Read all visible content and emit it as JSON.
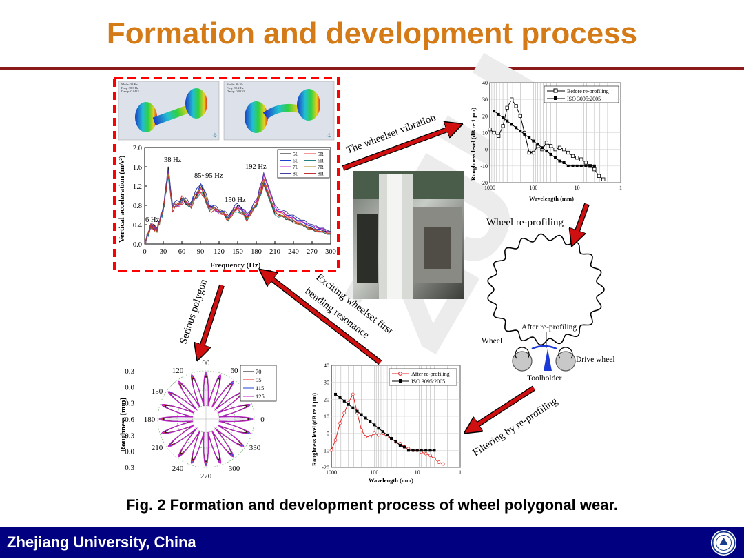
{
  "slide": {
    "title": "Formation and development process",
    "caption": "Fig. 2 Formation and development process of wheel polygonal wear.",
    "footer": "Zhejiang University, China"
  },
  "watermark": "ZJU",
  "colors": {
    "title": "#d47a16",
    "rule": "#8b1a1a",
    "footer_bg": "#000080",
    "arrow": "#d01010",
    "dashed_box": "#ff0000"
  },
  "arrow_labels": {
    "wheelset_vibration": "The wheelset vibration",
    "wheel_reprofiling": "Wheel re-profiling",
    "filtering": "Filtering by re-profiling",
    "exciting_line1": "Exciting wheelset first",
    "exciting_line2": "bending resonance",
    "serious_polygon": "Serious polygon"
  },
  "fe_panels": [
    {
      "header": [
        "Mode: 38 Hz",
        "Freq: 38.3 Hz",
        "Damp: 0.0413"
      ]
    },
    {
      "header": [
        "Mode: 90 Hz",
        "Freq: 90.2 Hz",
        "Damp: 0.0320"
      ]
    }
  ],
  "schematic": {
    "after_label": "After re-profiling",
    "wheel_label": "Wheel",
    "drive_label": "Drive wheel",
    "tool_label": "Toolholder"
  },
  "chart_data": [
    {
      "type": "line",
      "ylabel": "Vertical acceleration (m/s²)",
      "xlabel": "Frequency (Hz)",
      "xlim": [
        0,
        300
      ],
      "ylim": [
        0,
        2.0
      ],
      "xticks": [
        "0",
        "30",
        "60",
        "90",
        "120",
        "150",
        "180",
        "210",
        "240",
        "270",
        "300"
      ],
      "yticks": [
        "0.0",
        "0.4",
        "0.8",
        "1.2",
        "1.6",
        "2.0"
      ],
      "legend": [
        "5L",
        "5R",
        "6L",
        "6R",
        "7L",
        "7R",
        "8L",
        "8R"
      ],
      "annotations": [
        "38 Hz",
        "85~95 Hz",
        "192 Hz",
        "150 Hz",
        "6 Hz"
      ],
      "series": [
        {
          "name": "5L",
          "color": "#000000",
          "x": [
            0,
            10,
            20,
            30,
            38,
            45,
            60,
            75,
            90,
            105,
            120,
            135,
            150,
            165,
            180,
            192,
            210,
            240,
            270,
            300
          ],
          "y": [
            0.02,
            0.38,
            0.3,
            0.75,
            1.55,
            0.75,
            0.9,
            0.82,
            1.2,
            0.75,
            0.7,
            0.55,
            0.82,
            0.55,
            0.82,
            1.3,
            0.65,
            0.45,
            0.32,
            0.25
          ]
        },
        {
          "name": "5R",
          "color": "#e03030",
          "x": [
            0,
            10,
            20,
            30,
            38,
            45,
            60,
            75,
            90,
            105,
            120,
            135,
            150,
            165,
            180,
            192,
            210,
            240,
            270,
            300
          ],
          "y": [
            0.02,
            0.4,
            0.28,
            0.72,
            1.5,
            0.7,
            0.95,
            0.8,
            1.15,
            0.7,
            0.72,
            0.5,
            0.78,
            0.5,
            0.85,
            1.35,
            0.7,
            0.5,
            0.3,
            0.2
          ]
        },
        {
          "name": "6L",
          "color": "#2040d0",
          "x": [
            0,
            10,
            20,
            30,
            38,
            45,
            60,
            75,
            90,
            105,
            120,
            135,
            150,
            165,
            180,
            192,
            210,
            240,
            270,
            300
          ],
          "y": [
            0.02,
            0.36,
            0.32,
            0.7,
            1.45,
            0.78,
            0.88,
            0.85,
            1.25,
            0.8,
            0.68,
            0.58,
            0.75,
            0.58,
            0.8,
            1.25,
            0.72,
            0.55,
            0.35,
            0.22
          ]
        },
        {
          "name": "6R",
          "color": "#208080",
          "x": [
            0,
            10,
            20,
            30,
            38,
            45,
            60,
            75,
            90,
            105,
            120,
            135,
            150,
            165,
            180,
            192,
            210,
            240,
            270,
            300
          ],
          "y": [
            0.02,
            0.35,
            0.3,
            0.68,
            1.4,
            0.72,
            0.92,
            0.78,
            1.1,
            0.72,
            0.75,
            0.52,
            0.7,
            0.52,
            0.78,
            1.2,
            0.6,
            0.48,
            0.28,
            0.2
          ]
        },
        {
          "name": "7L",
          "color": "#c020c0",
          "x": [
            0,
            10,
            20,
            30,
            38,
            45,
            60,
            75,
            90,
            105,
            120,
            135,
            150,
            165,
            180,
            192,
            210,
            240,
            270,
            300
          ],
          "y": [
            0.02,
            0.38,
            0.33,
            0.74,
            1.52,
            0.74,
            0.86,
            0.83,
            1.18,
            0.78,
            0.66,
            0.56,
            0.8,
            0.6,
            0.88,
            1.4,
            0.75,
            0.52,
            0.38,
            0.24
          ]
        },
        {
          "name": "7R",
          "color": "#a08020",
          "x": [
            0,
            10,
            20,
            30,
            38,
            45,
            60,
            75,
            90,
            105,
            120,
            135,
            150,
            165,
            180,
            192,
            210,
            240,
            270,
            300
          ],
          "y": [
            0.02,
            0.37,
            0.29,
            0.73,
            1.48,
            0.76,
            0.9,
            0.81,
            1.22,
            0.74,
            0.7,
            0.54,
            0.76,
            0.54,
            0.82,
            1.28,
            0.66,
            0.46,
            0.3,
            0.22
          ]
        },
        {
          "name": "8L",
          "color": "#4040a0",
          "x": [
            0,
            10,
            20,
            30,
            38,
            45,
            60,
            75,
            90,
            105,
            120,
            135,
            150,
            165,
            180,
            192,
            210,
            240,
            270,
            300
          ],
          "y": [
            0.02,
            0.39,
            0.31,
            0.76,
            1.58,
            0.8,
            0.94,
            0.86,
            1.28,
            0.82,
            0.72,
            0.6,
            0.84,
            0.62,
            0.9,
            1.45,
            0.78,
            0.58,
            0.4,
            0.26
          ]
        },
        {
          "name": "8R",
          "color": "#c03030",
          "x": [
            0,
            10,
            20,
            30,
            38,
            45,
            60,
            75,
            90,
            105,
            120,
            135,
            150,
            165,
            180,
            192,
            210,
            240,
            270,
            300
          ],
          "y": [
            0.02,
            0.36,
            0.3,
            0.71,
            1.44,
            0.7,
            0.87,
            0.79,
            1.12,
            0.7,
            0.69,
            0.53,
            0.73,
            0.53,
            0.79,
            1.22,
            0.64,
            0.47,
            0.31,
            0.21
          ]
        }
      ]
    },
    {
      "type": "line",
      "ylabel": "Roughness level (dB re 1 μm)",
      "xlabel": "Wavelength (mm)",
      "xscale": "log-reversed",
      "xlim": [
        1000,
        1
      ],
      "ylim": [
        -20,
        40
      ],
      "xticks": [
        "1000",
        "100",
        "10",
        "1"
      ],
      "yticks": [
        "-20",
        "-10",
        "0",
        "10",
        "20",
        "30",
        "40"
      ],
      "legend_position": "top-right",
      "series": [
        {
          "name": "Before re-profiling",
          "marker": "open-square",
          "x": [
            1000,
            800,
            630,
            500,
            400,
            315,
            250,
            200,
            160,
            125,
            100,
            80,
            63,
            50,
            40,
            31.5,
            25,
            20,
            16,
            12.5,
            10,
            8,
            6.3,
            5,
            4,
            3.15,
            2.5
          ],
          "y": [
            12,
            10,
            8,
            14,
            25,
            30,
            26,
            20,
            10,
            -2,
            -2,
            2,
            0,
            4,
            2,
            0,
            1,
            0,
            -2,
            -4,
            -5,
            -6,
            -8,
            -10,
            -12,
            -16,
            -18
          ]
        },
        {
          "name": "ISO 3095:2005",
          "marker": "filled-square",
          "x": [
            800,
            630,
            500,
            400,
            315,
            250,
            200,
            160,
            125,
            100,
            80,
            63,
            50,
            40,
            31.5,
            25,
            20,
            16,
            12.5,
            10,
            8,
            6.3,
            5,
            4
          ],
          "y": [
            23,
            21,
            19,
            17,
            15,
            13,
            11,
            9,
            7,
            5,
            3,
            1,
            -1,
            -3,
            -5,
            -7,
            -8,
            -10,
            -10,
            -10,
            -10,
            -10,
            -10,
            -10
          ]
        }
      ]
    },
    {
      "type": "line",
      "ylabel": "Roughness level (dB re 1 μm)",
      "xlabel": "Wavelength (mm)",
      "xscale": "log-reversed",
      "xlim": [
        1000,
        1
      ],
      "ylim": [
        -20,
        40
      ],
      "xticks": [
        "1000",
        "100",
        "10",
        "1"
      ],
      "yticks": [
        "-20",
        "-10",
        "0",
        "10",
        "20",
        "30",
        "40"
      ],
      "legend_position": "top-right",
      "series": [
        {
          "name": "After re-profiling",
          "marker": "open-circle",
          "color": "#e02020",
          "x": [
            1000,
            800,
            630,
            500,
            400,
            315,
            250,
            200,
            160,
            125,
            100,
            80,
            63,
            50,
            40,
            31.5,
            25,
            20,
            16,
            12.5,
            10,
            8,
            6.3,
            5,
            4,
            3.15,
            2.5
          ],
          "y": [
            -10,
            -4,
            6,
            12,
            18,
            23,
            12,
            2,
            -2,
            -2,
            0,
            -1,
            0,
            -2,
            -3,
            -5,
            -6,
            -8,
            -9,
            -10,
            -10,
            -11,
            -12,
            -13,
            -15,
            -17,
            -18
          ]
        },
        {
          "name": "ISO 3095:2005",
          "marker": "filled-square",
          "color": "#000000",
          "x": [
            800,
            630,
            500,
            400,
            315,
            250,
            200,
            160,
            125,
            100,
            80,
            63,
            50,
            40,
            31.5,
            25,
            20,
            16,
            12.5,
            10,
            8,
            6.3,
            5,
            4
          ],
          "y": [
            23,
            21,
            19,
            17,
            15,
            13,
            11,
            9,
            7,
            5,
            3,
            1,
            -1,
            -3,
            -5,
            -7,
            -8,
            -10,
            -10,
            -10,
            -10,
            -10,
            -10,
            -10
          ]
        }
      ]
    },
    {
      "type": "polar",
      "ylabel": "Roughness [mm]",
      "rticks": [
        "0.3",
        "0.0",
        "-0.3",
        "-0.6",
        "-0.3",
        "0.0",
        "0.3"
      ],
      "angle_ticks": [
        "0",
        "30",
        "60",
        "90",
        "120",
        "150",
        "180",
        "210",
        "240",
        "270",
        "300",
        "330"
      ],
      "legend": [
        "70",
        "95",
        "115",
        "125"
      ],
      "series": [
        {
          "name": "70",
          "color": "#000000",
          "lobes": 20,
          "amplitude": 0.18
        },
        {
          "name": "95",
          "color": "#e02020",
          "lobes": 20,
          "amplitude": 0.2
        },
        {
          "name": "115",
          "color": "#2040d0",
          "lobes": 20,
          "amplitude": 0.22
        },
        {
          "name": "125",
          "color": "#c020c0",
          "lobes": 20,
          "amplitude": 0.24
        }
      ]
    }
  ]
}
